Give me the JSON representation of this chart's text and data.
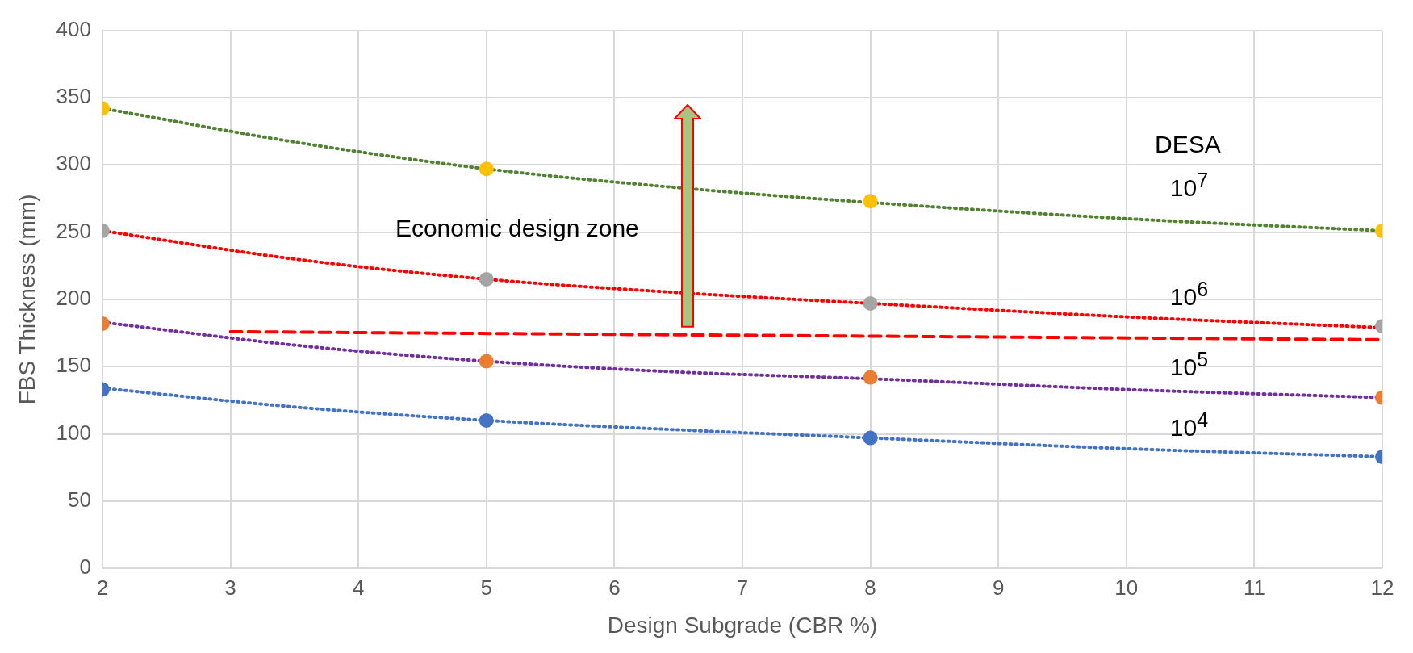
{
  "chart_data": {
    "type": "scatter",
    "xlabel": "Design Subgrade (CBR %)",
    "ylabel": "FBS Thickness (mm)",
    "xlim": [
      2,
      12
    ],
    "xticks": [
      2,
      3,
      4,
      5,
      6,
      7,
      8,
      9,
      10,
      11,
      12
    ],
    "ylim": [
      0,
      400
    ],
    "yticks": [
      0,
      50,
      100,
      150,
      200,
      250,
      300,
      350,
      400
    ],
    "grid": true,
    "legend": false,
    "marker": "circle",
    "x": [
      2,
      5,
      8,
      12
    ],
    "series": [
      {
        "type": "line",
        "color": "#548235",
        "line_style": "dotted",
        "marker": "none",
        "x": [
          2,
          3.5,
          5,
          6.5,
          8,
          10,
          12
        ],
        "values": [
          342,
          317,
          297,
          283,
          272,
          260,
          251
        ]
      },
      {
        "type": "line",
        "color": "#ff0000",
        "line_style": "dotted",
        "marker": "none",
        "x": [
          2,
          3.5,
          5,
          6.5,
          8,
          10,
          12
        ],
        "values": [
          251,
          230,
          215,
          205,
          197,
          187,
          179
        ]
      },
      {
        "type": "line",
        "color": "#7030a0",
        "line_style": "dotted",
        "marker": "none",
        "x": [
          2,
          3.5,
          5,
          6.5,
          8,
          10,
          12
        ],
        "values": [
          183,
          166,
          154,
          146,
          141,
          133,
          127
        ]
      },
      {
        "type": "line",
        "color": "#4472c4",
        "line_style": "dotted",
        "marker": "none",
        "x": [
          2,
          3.5,
          5,
          6.5,
          8,
          10,
          12
        ],
        "values": [
          134,
          120,
          110,
          103,
          97,
          89,
          83
        ]
      },
      {
        "type": "line",
        "color": "#ff0000",
        "line_style": "dashed",
        "marker": "none",
        "x": [
          3,
          12
        ],
        "values": [
          176,
          170
        ]
      },
      {
        "color": "#ffc000",
        "values": [
          342,
          297,
          273,
          251
        ]
      },
      {
        "color": "#a5a5a5",
        "values": [
          251,
          215,
          197,
          180
        ]
      },
      {
        "color": "#ed7d31",
        "values": [
          182,
          154,
          142,
          127
        ]
      },
      {
        "color": "#4472c4",
        "values": [
          133,
          110,
          97,
          83
        ]
      }
    ],
    "annotations": [
      "Economic design zone",
      "DESA",
      "10$^{7}$",
      "10$^{6}$",
      "10$^{5}$",
      "10$^{4}$"
    ]
  }
}
